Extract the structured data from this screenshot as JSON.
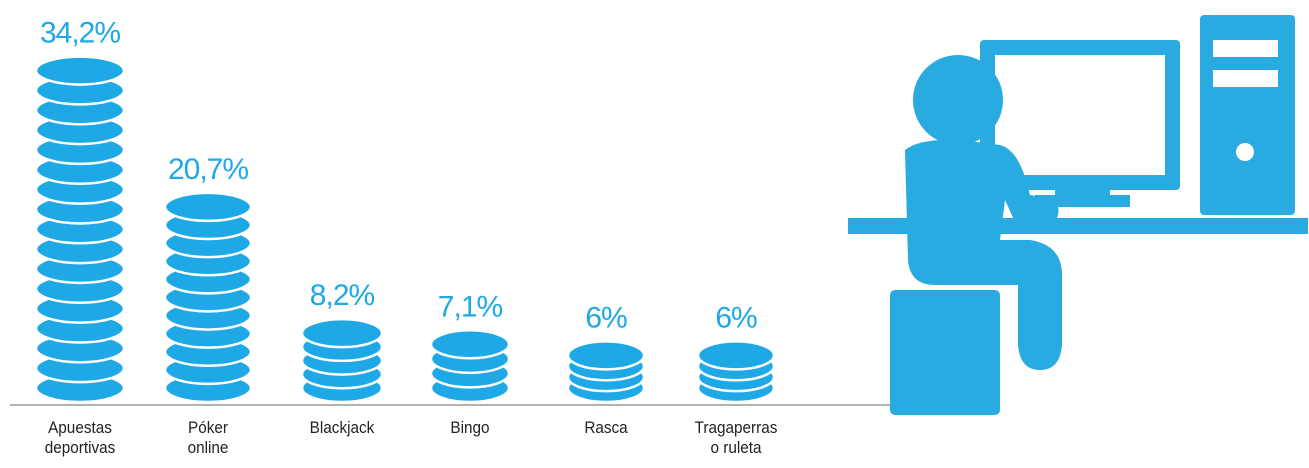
{
  "chart_data": {
    "type": "coin-stack",
    "categories": [
      "Apuestas deportivas",
      "Póker online",
      "Blackjack",
      "Bingo",
      "Rasca",
      "Tragaperras o ruleta"
    ],
    "values": [
      34.2,
      20.7,
      8.2,
      7.1,
      6,
      6
    ],
    "value_labels": [
      "34,2%",
      "20,7%",
      "8,2%",
      "7,1%",
      "6%",
      "6%"
    ],
    "color": "#1ea9e6"
  }
}
